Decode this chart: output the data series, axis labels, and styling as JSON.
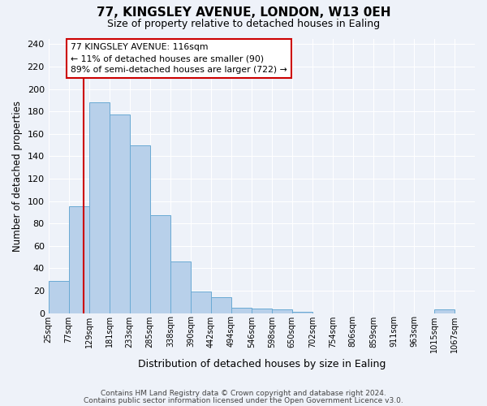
{
  "title": "77, KINGSLEY AVENUE, LONDON, W13 0EH",
  "subtitle": "Size of property relative to detached houses in Ealing",
  "xlabel": "Distribution of detached houses by size in Ealing",
  "ylabel": "Number of detached properties",
  "bar_labels": [
    "25sqm",
    "77sqm",
    "129sqm",
    "181sqm",
    "233sqm",
    "285sqm",
    "338sqm",
    "390sqm",
    "442sqm",
    "494sqm",
    "546sqm",
    "598sqm",
    "650sqm",
    "702sqm",
    "754sqm",
    "806sqm",
    "859sqm",
    "911sqm",
    "963sqm",
    "1015sqm",
    "1067sqm"
  ],
  "bar_heights": [
    29,
    95,
    188,
    177,
    150,
    87,
    46,
    19,
    14,
    5,
    4,
    3,
    1,
    0,
    0,
    0,
    0,
    0,
    0,
    3,
    0
  ],
  "bar_color": "#b8d0ea",
  "bar_edge_color": "#6aaad4",
  "ylim": [
    0,
    245
  ],
  "yticks": [
    0,
    20,
    40,
    60,
    80,
    100,
    120,
    140,
    160,
    180,
    200,
    220,
    240
  ],
  "annotation_box_text": "77 KINGSLEY AVENUE: 116sqm\n← 11% of detached houses are smaller (90)\n89% of semi-detached houses are larger (722) →",
  "red_line_color": "#cc0000",
  "footnote1": "Contains HM Land Registry data © Crown copyright and database right 2024.",
  "footnote2": "Contains public sector information licensed under the Open Government Licence v3.0.",
  "background_color": "#eef2f9",
  "grid_color": "#ffffff",
  "bin_edges": [
    25,
    77,
    129,
    181,
    233,
    285,
    338,
    390,
    442,
    494,
    546,
    598,
    650,
    702,
    754,
    806,
    859,
    911,
    963,
    1015,
    1067,
    1119
  ],
  "red_line_x": 116
}
